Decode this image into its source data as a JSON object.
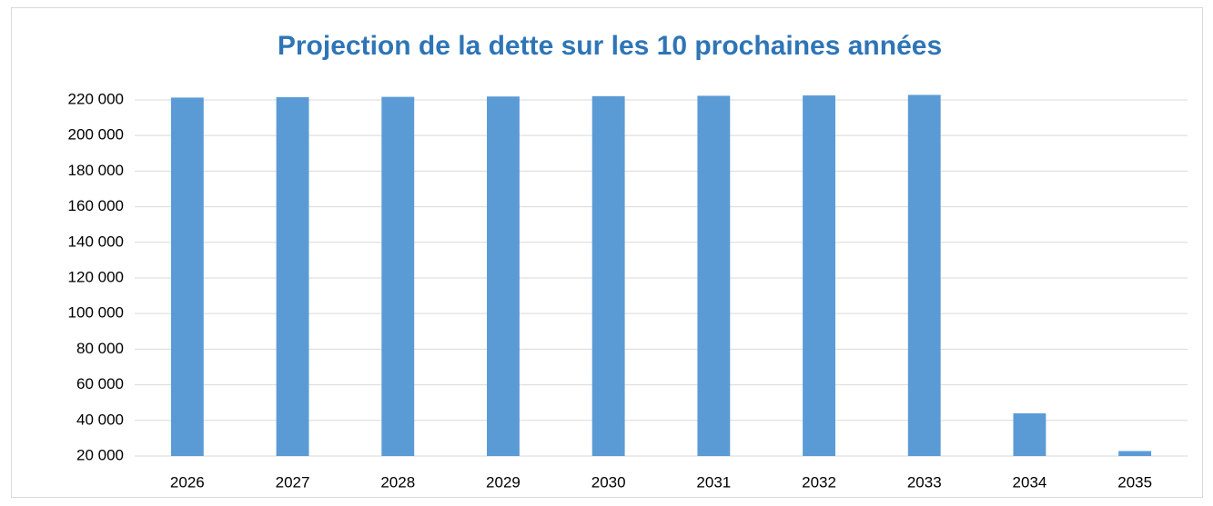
{
  "chart_data": {
    "type": "bar",
    "title": "Projection de la dette sur les 10 prochaines années",
    "categories": [
      "2026",
      "2027",
      "2028",
      "2029",
      "2030",
      "2031",
      "2032",
      "2033",
      "2034",
      "2035"
    ],
    "values": [
      221300,
      221500,
      221700,
      221900,
      222100,
      222300,
      222500,
      222800,
      44000,
      22800
    ],
    "color": "#5b9bd5",
    "ylim": [
      20000,
      226000
    ],
    "yticks": [
      {
        "value": 20000,
        "label": "20 000"
      },
      {
        "value": 40000,
        "label": "40 000"
      },
      {
        "value": 60000,
        "label": "60 000"
      },
      {
        "value": 80000,
        "label": "80 000"
      },
      {
        "value": 100000,
        "label": "100 000"
      },
      {
        "value": 120000,
        "label": "120 000"
      },
      {
        "value": 140000,
        "label": "140 000"
      },
      {
        "value": 160000,
        "label": "160 000"
      },
      {
        "value": 180000,
        "label": "180 000"
      },
      {
        "value": 200000,
        "label": "200 000"
      },
      {
        "value": 220000,
        "label": "220 000"
      }
    ],
    "grid": true
  }
}
